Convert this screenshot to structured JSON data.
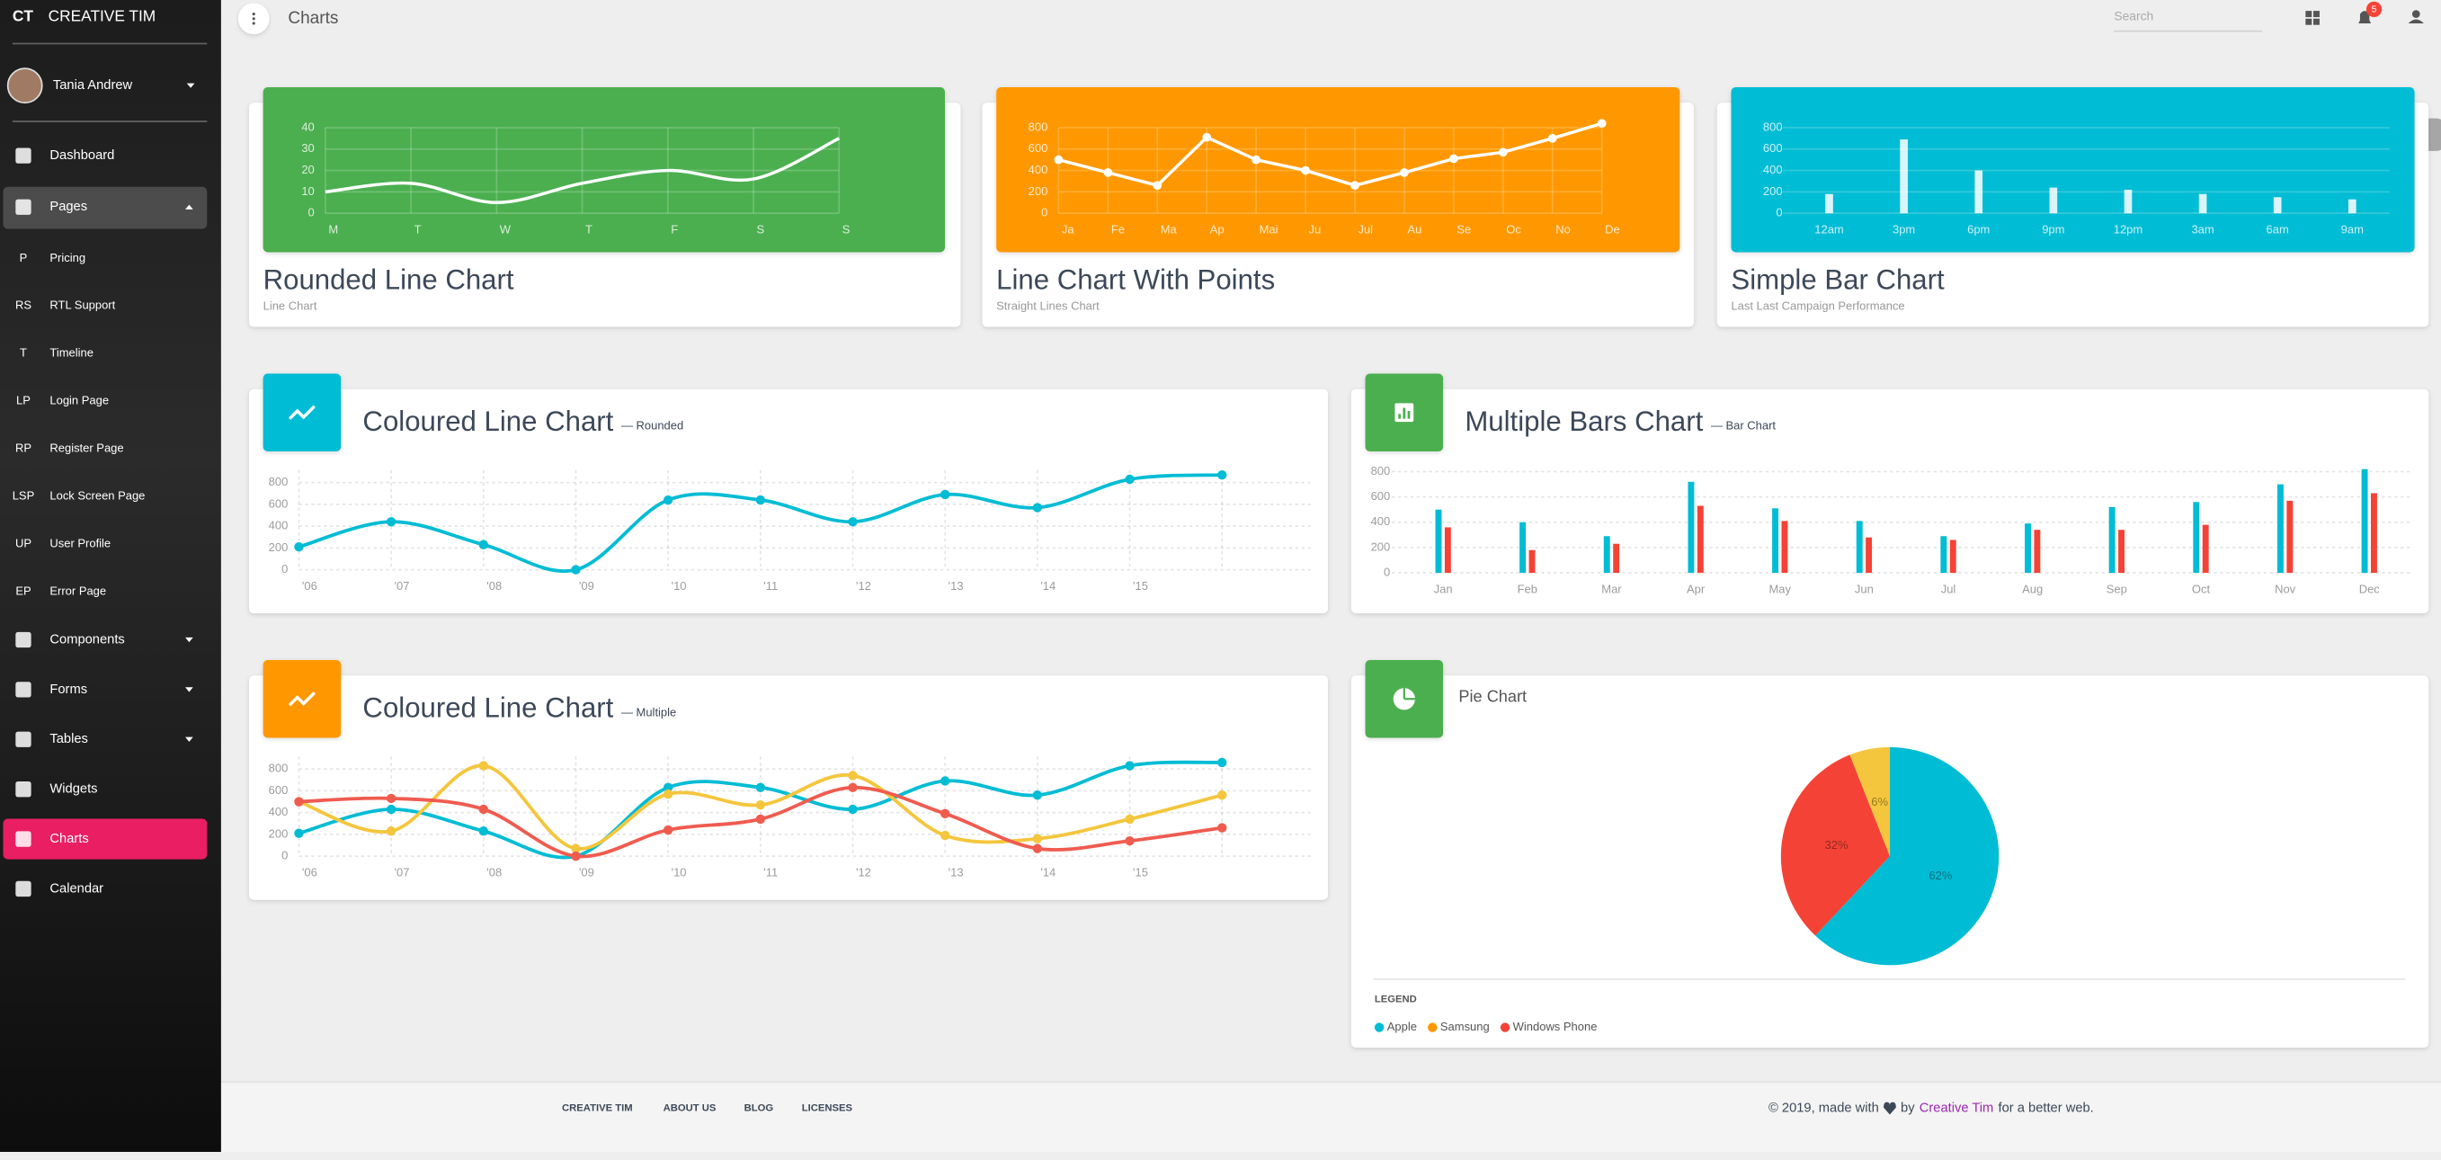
{
  "sidebar": {
    "logo_mini": "CT",
    "logo": "CREATIVE TIM",
    "user": "Tania Andrew",
    "items": [
      "Dashboard",
      "Pages",
      "Components",
      "Forms",
      "Tables",
      "Widgets",
      "Charts",
      "Calendar"
    ],
    "pages": [
      {
        "abbr": "P",
        "label": "Pricing"
      },
      {
        "abbr": "RS",
        "label": "RTL Support"
      },
      {
        "abbr": "T",
        "label": "Timeline"
      },
      {
        "abbr": "LP",
        "label": "Login Page"
      },
      {
        "abbr": "RP",
        "label": "Register Page"
      },
      {
        "abbr": "LSP",
        "label": "Lock Screen Page"
      },
      {
        "abbr": "UP",
        "label": "User Profile"
      },
      {
        "abbr": "EP",
        "label": "Error Page"
      }
    ]
  },
  "navbar": {
    "title": "Charts",
    "search_placeholder": "Search",
    "notifications": 5
  },
  "chart_data": [
    {
      "type": "line",
      "title": "Rounded Line Chart",
      "subtitle": "Line Chart",
      "background": "#4caf50",
      "smooth": true,
      "points": false,
      "categories": [
        "M",
        "T",
        "W",
        "T",
        "F",
        "S",
        "S"
      ],
      "series": [
        {
          "color": "#ffffff",
          "values": [
            10,
            14,
            5,
            14,
            20,
            16,
            35
          ]
        }
      ],
      "ylim": [
        0,
        40
      ],
      "yticks": [
        0,
        10,
        20,
        30,
        40
      ],
      "grid": true
    },
    {
      "type": "line",
      "title": "Line Chart With Points",
      "subtitle": "Straight Lines Chart",
      "background": "#ff9800",
      "smooth": false,
      "points": true,
      "categories": [
        "Ja",
        "Fe",
        "Ma",
        "Ap",
        "Mai",
        "Ju",
        "Jul",
        "Au",
        "Se",
        "Oc",
        "No",
        "De"
      ],
      "series": [
        {
          "color": "#ffffff",
          "values": [
            500,
            380,
            260,
            710,
            500,
            400,
            260,
            380,
            510,
            570,
            700,
            840
          ]
        }
      ],
      "ylim": [
        0,
        800
      ],
      "yticks": [
        0,
        200,
        400,
        600,
        800
      ],
      "grid": true
    },
    {
      "type": "bar",
      "title": "Simple Bar Chart",
      "subtitle": "Last Last Campaign Performance",
      "background": "#00bcd4",
      "categories": [
        "12am",
        "3pm",
        "6pm",
        "9pm",
        "12pm",
        "3am",
        "6am",
        "9am"
      ],
      "series": [
        {
          "color": "#ffffff",
          "values": [
            180,
            690,
            400,
            240,
            220,
            180,
            150,
            130
          ]
        }
      ],
      "ylim": [
        0,
        800
      ],
      "yticks": [
        0,
        200,
        400,
        600,
        800
      ],
      "grid": true
    },
    {
      "type": "line",
      "title": "Coloured Line Chart",
      "subtitle": "— Rounded",
      "icon_color": "#00bcd4",
      "smooth": true,
      "points": true,
      "categories": [
        "'06",
        "'07",
        "'08",
        "'09",
        "'10",
        "'11",
        "'12",
        "'13",
        "'14",
        "'15",
        null
      ],
      "series": [
        {
          "color": "#00bcd4",
          "values": [
            210,
            440,
            230,
            0,
            640,
            640,
            440,
            690,
            570,
            830,
            870
          ]
        }
      ],
      "ylim": [
        0,
        800
      ],
      "yticks": [
        0,
        200,
        400,
        600,
        800
      ],
      "grid": true
    },
    {
      "type": "bar",
      "title": "Multiple Bars Chart",
      "subtitle": "— Bar Chart",
      "icon_color": "#4caf50",
      "categories": [
        "Jan",
        "Feb",
        "Mar",
        "Apr",
        "May",
        "Jun",
        "Jul",
        "Aug",
        "Sep",
        "Oct",
        "Nov",
        "Dec"
      ],
      "series": [
        {
          "color": "#00bcd4",
          "values": [
            500,
            400,
            290,
            720,
            510,
            410,
            290,
            390,
            520,
            560,
            700,
            820
          ]
        },
        {
          "color": "#f44336",
          "values": [
            360,
            180,
            230,
            530,
            410,
            280,
            260,
            340,
            340,
            380,
            570,
            630
          ]
        }
      ],
      "ylim": [
        0,
        800
      ],
      "yticks": [
        0,
        200,
        400,
        600,
        800
      ],
      "grid": true
    },
    {
      "type": "line",
      "title": "Coloured Line Chart",
      "subtitle": "— Multiple",
      "icon_color": "#ff9800",
      "smooth": true,
      "points": true,
      "categories": [
        "'06",
        "'07",
        "'08",
        "'09",
        "'10",
        "'11",
        "'12",
        "'13",
        "'14",
        "'15",
        null
      ],
      "series": [
        {
          "color": "#00bcd4",
          "values": [
            210,
            430,
            230,
            0,
            630,
            630,
            430,
            690,
            560,
            830,
            860
          ]
        },
        {
          "color": "#f4c63d",
          "values": [
            500,
            230,
            830,
            70,
            570,
            470,
            740,
            190,
            160,
            340,
            560
          ]
        },
        {
          "color": "#f05b4f",
          "values": [
            500,
            530,
            430,
            0,
            240,
            340,
            630,
            390,
            70,
            140,
            260
          ]
        }
      ],
      "ylim": [
        0,
        800
      ],
      "yticks": [
        0,
        200,
        400,
        600,
        800
      ],
      "grid": true
    },
    {
      "type": "pie",
      "title": "Pie Chart",
      "icon_color": "#4caf50",
      "values": [
        62,
        32,
        6
      ],
      "value_labels": [
        "62%",
        "32%",
        "6%"
      ],
      "colors": [
        "#00bcd4",
        "#f44336",
        "#f4c63d"
      ],
      "legend": {
        "title": "LEGEND",
        "items": [
          {
            "name": "Apple",
            "color": "#00bcd4"
          },
          {
            "name": "Samsung",
            "color": "#ff9800"
          },
          {
            "name": "Windows Phone",
            "color": "#f44336"
          }
        ]
      }
    }
  ],
  "footer": {
    "links": [
      "CREATIVE TIM",
      "ABOUT US",
      "BLOG",
      "LICENSES"
    ],
    "copyright": {
      "prefix": "© 2019, made with",
      "by": "by",
      "link": "Creative Tim",
      "suffix": "for a better web."
    }
  }
}
